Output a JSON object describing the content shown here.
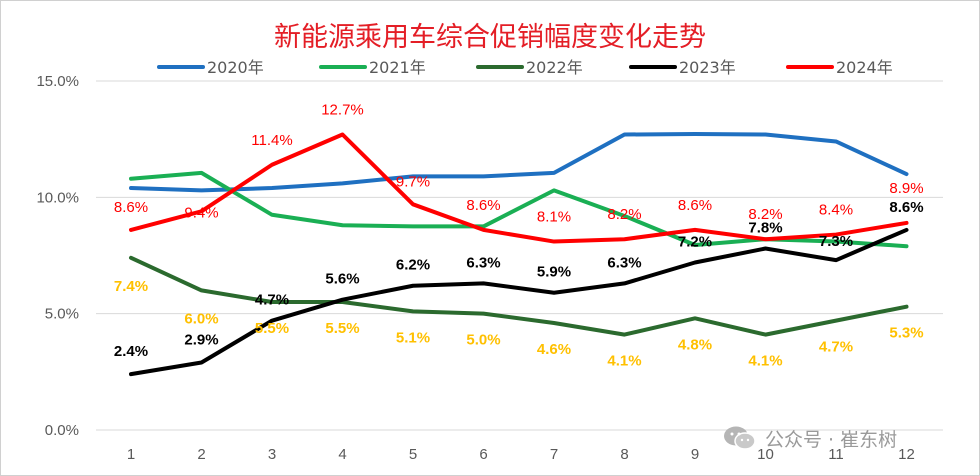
{
  "watermark": {
    "text": "公众号 · 崔东树",
    "icon": "wechat-icon"
  },
  "chart_data": {
    "type": "line",
    "title": "新能源乘用车综合促销幅度变化走势",
    "xlabel": "",
    "ylabel": "",
    "x": [
      1,
      2,
      3,
      4,
      5,
      6,
      7,
      8,
      9,
      10,
      11,
      12
    ],
    "x_tick_labels": [
      "1",
      "2",
      "3",
      "4",
      "5",
      "6",
      "7",
      "8",
      "9",
      "10",
      "11",
      "12"
    ],
    "ylim": [
      0,
      15
    ],
    "y_ticks": [
      0,
      5,
      10,
      15
    ],
    "y_tick_labels": [
      "0.0%",
      "5.0%",
      "10.0%",
      "15.0%"
    ],
    "grid": true,
    "legend_position": "top",
    "title_color": "#e41e26",
    "series": [
      {
        "name": "2020年",
        "color": "#1f70c1",
        "values": [
          10.4,
          10.3,
          10.4,
          10.6,
          10.9,
          10.9,
          11.05,
          12.7,
          12.72,
          12.7,
          12.4,
          11.0
        ],
        "labels": null
      },
      {
        "name": "2021年",
        "color": "#1aaf54",
        "values": [
          10.8,
          11.05,
          9.25,
          8.8,
          8.75,
          8.75,
          10.3,
          9.2,
          7.95,
          8.2,
          8.1,
          7.9
        ],
        "labels": null
      },
      {
        "name": "2022年",
        "color": "#2b6a2e",
        "values": [
          7.4,
          6.0,
          5.5,
          5.5,
          5.1,
          5.0,
          4.6,
          4.1,
          4.8,
          4.1,
          4.7,
          5.3
        ],
        "labels": [
          "7.4%",
          "6.0%",
          "5.5%",
          "5.5%",
          "5.1%",
          "5.0%",
          "4.6%",
          "4.1%",
          "4.8%",
          "4.1%",
          "4.7%",
          "5.3%"
        ],
        "label_color": "#ffc000"
      },
      {
        "name": "2023年",
        "color": "#000000",
        "values": [
          2.4,
          2.9,
          4.7,
          5.6,
          6.2,
          6.3,
          5.9,
          6.3,
          7.2,
          7.8,
          7.3,
          8.6
        ],
        "labels": [
          "2.4%",
          "2.9%",
          "4.7%",
          "5.6%",
          "6.2%",
          "6.3%",
          "5.9%",
          "6.3%",
          "7.2%",
          "7.8%",
          "7.3%",
          "8.6%"
        ],
        "label_color": "#000000"
      },
      {
        "name": "2024年",
        "color": "#ff0000",
        "values": [
          8.6,
          9.4,
          11.4,
          12.7,
          9.7,
          8.6,
          8.1,
          8.2,
          8.6,
          8.2,
          8.4,
          8.9
        ],
        "labels": [
          "8.6%",
          "9.4%",
          "11.4%",
          "12.7%",
          "9.7%",
          "8.6%",
          "8.1%",
          "8.2%",
          "8.6%",
          "8.2%",
          "8.4%",
          "8.9%"
        ],
        "label_color": "#ff0000"
      }
    ]
  }
}
